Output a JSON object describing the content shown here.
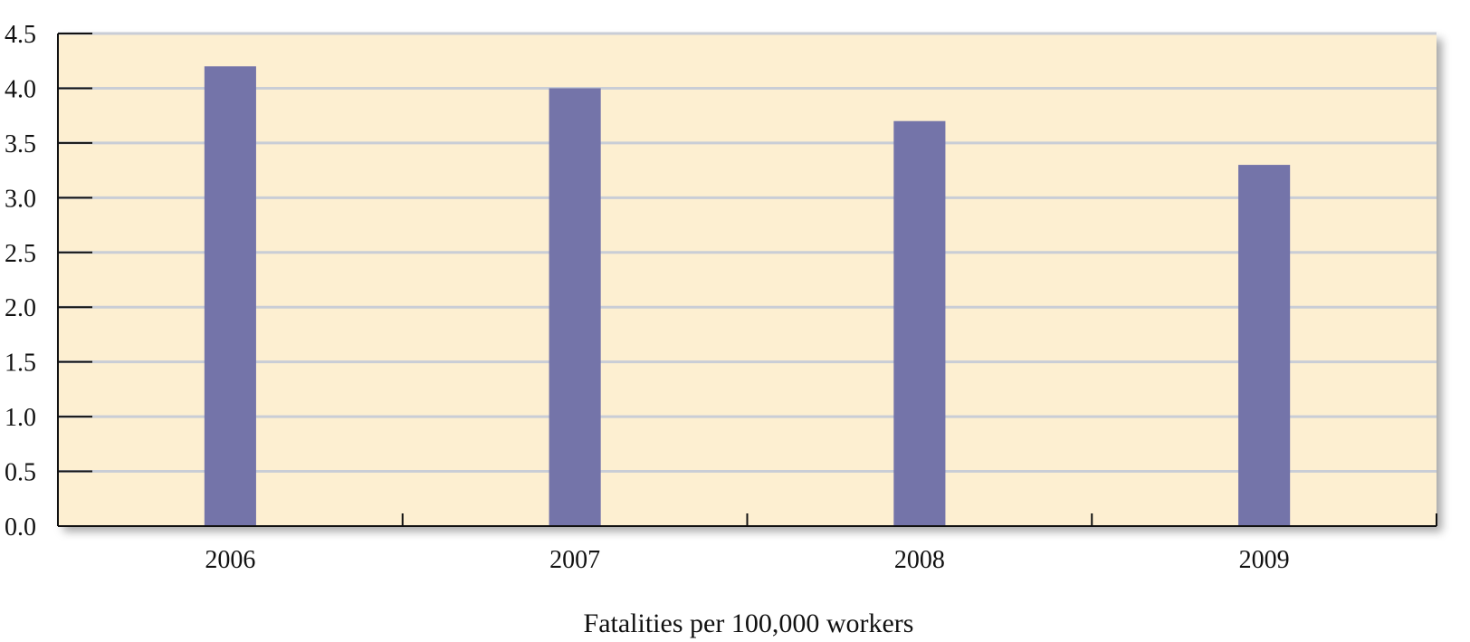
{
  "chart_data": {
    "type": "bar",
    "categories": [
      "2006",
      "2007",
      "2008",
      "2009"
    ],
    "values": [
      4.2,
      4.0,
      3.7,
      3.3
    ],
    "title": "",
    "xlabel": "Fatalities per 100,000 workers",
    "ylabel": "",
    "ylim": [
      0,
      4.5
    ],
    "yticks": [
      "0.0",
      "0.5",
      "1.0",
      "1.5",
      "2.0",
      "2.5",
      "3.0",
      "3.5",
      "4.0",
      "4.5"
    ],
    "grid": true,
    "legend": "none",
    "colors": {
      "bar": "#7474a9",
      "plot_background": "#fdefd1",
      "gridline": "#c9cdd6",
      "axis": "#111111"
    }
  }
}
